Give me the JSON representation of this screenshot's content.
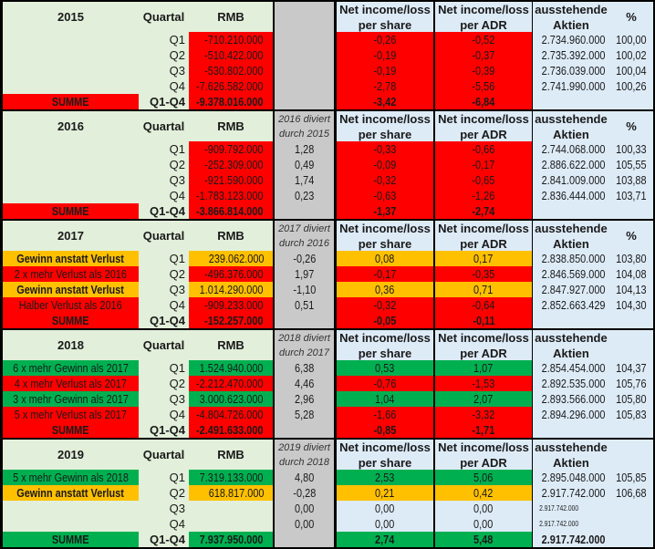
{
  "headers": {
    "quartal": "Quartal",
    "rmb": "RMB",
    "eps": "Net income/loss\nper share",
    "adr": "Net income/loss\nper ADR",
    "shares": "ausstehende\nAktien",
    "pct": "%"
  },
  "colors": {
    "red": "#ff0000",
    "orange": "#ffc000",
    "green": "#00b050",
    "light_green": "#e2efda",
    "light_blue": "#ddebf7",
    "gray": "#c9c9c9"
  },
  "years": [
    {
      "year": "2015",
      "divided": "",
      "show_pct": true,
      "rows": [
        {
          "label": "",
          "lt": "none",
          "q": "Q1",
          "rmb": "-710.210.000",
          "vt": "red",
          "ratio": "",
          "eps": "-0,26",
          "adr": "-0,52",
          "shares": "2.734.960.000",
          "pct": "100,00"
        },
        {
          "label": "",
          "lt": "none",
          "q": "Q2",
          "rmb": "-510.422.000",
          "vt": "red",
          "ratio": "",
          "eps": "-0,19",
          "adr": "-0,37",
          "shares": "2.735.392.000",
          "pct": "100,02"
        },
        {
          "label": "",
          "lt": "none",
          "q": "Q3",
          "rmb": "-530.802.000",
          "vt": "red",
          "ratio": "",
          "eps": "-0,19",
          "adr": "-0,39",
          "shares": "2.736.039.000",
          "pct": "100,04"
        },
        {
          "label": "",
          "lt": "none",
          "q": "Q4",
          "rmb": "-7.626.582.000",
          "vt": "red",
          "ratio": "",
          "eps": "-2,78",
          "adr": "-5,56",
          "shares": "2.741.990.000",
          "pct": "100,26"
        },
        {
          "label": "SUMME",
          "lt": "red",
          "q": "Q1-Q4",
          "rmb": "-9.378.016.000",
          "vt": "red",
          "ratio": "",
          "eps": "-3,42",
          "adr": "-6,84",
          "shares": "",
          "pct": "",
          "sum": true
        }
      ]
    },
    {
      "year": "2016",
      "divided": "2016 diviert\ndurch 2015",
      "show_pct": true,
      "rows": [
        {
          "label": "",
          "lt": "none",
          "q": "Q1",
          "rmb": "-909.792.000",
          "vt": "red",
          "ratio": "1,28",
          "eps": "-0,33",
          "adr": "-0,66",
          "shares": "2.744.068.000",
          "pct": "100,33"
        },
        {
          "label": "",
          "lt": "none",
          "q": "Q2",
          "rmb": "-252.309.000",
          "vt": "red",
          "ratio": "0,49",
          "eps": "-0,09",
          "adr": "-0,17",
          "shares": "2.886.622.000",
          "pct": "105,55"
        },
        {
          "label": "",
          "lt": "none",
          "q": "Q3",
          "rmb": "-921.590.000",
          "vt": "red",
          "ratio": "1,74",
          "eps": "-0,32",
          "adr": "-0,65",
          "shares": "2.841.009.000",
          "pct": "103,88"
        },
        {
          "label": "",
          "lt": "none",
          "q": "Q4",
          "rmb": "-1.783.123.000",
          "vt": "red",
          "ratio": "0,23",
          "eps": "-0,63",
          "adr": "-1,26",
          "shares": "2.836.444.000",
          "pct": "103,71"
        },
        {
          "label": "SUMME",
          "lt": "red",
          "q": "Q1-Q4",
          "rmb": "-3.866.814.000",
          "vt": "red",
          "ratio": "",
          "eps": "-1,37",
          "adr": "-2,74",
          "shares": "",
          "pct": "",
          "sum": true
        }
      ]
    },
    {
      "year": "2017",
      "divided": "2017 diviert\ndurch 2016",
      "show_pct": true,
      "rows": [
        {
          "label": "Gewinn anstatt Verlust",
          "lt": "orange",
          "q": "Q1",
          "rmb": "239.062.000",
          "vt": "orange",
          "ratio": "-0,26",
          "eps": "0,08",
          "adr": "0,17",
          "shares": "2.838.850.000",
          "pct": "103,80"
        },
        {
          "label": "2 x mehr Verlust als 2016",
          "lt": "red",
          "q": "Q2",
          "rmb": "-496.376.000",
          "vt": "red",
          "ratio": "1,97",
          "eps": "-0,17",
          "adr": "-0,35",
          "shares": "2.846.569.000",
          "pct": "104,08"
        },
        {
          "label": "Gewinn anstatt Verlust",
          "lt": "orange",
          "q": "Q3",
          "rmb": "1.014.290.000",
          "vt": "orange",
          "ratio": "-1,10",
          "eps": "0,36",
          "adr": "0,71",
          "shares": "2.847.927.000",
          "pct": "104,13"
        },
        {
          "label": "Halber Verlust als 2016",
          "lt": "red",
          "q": "Q4",
          "rmb": "-909.233.000",
          "vt": "red",
          "ratio": "0,51",
          "eps": "-0,32",
          "adr": "-0,64",
          "shares": "2.852.663.429",
          "pct": "104,30"
        },
        {
          "label": "SUMME",
          "lt": "red",
          "q": "Q1-Q4",
          "rmb": "-152.257.000",
          "vt": "red",
          "ratio": "",
          "eps": "-0,05",
          "adr": "-0,11",
          "shares": "",
          "pct": "",
          "sum": true
        }
      ]
    },
    {
      "year": "2018",
      "divided": "2018 diviert\ndurch 2017",
      "show_pct": false,
      "rows": [
        {
          "label": "6 x mehr Gewinn als 2017",
          "lt": "green",
          "q": "Q1",
          "rmb": "1.524.940.000",
          "vt": "green",
          "ratio": "6,38",
          "eps": "0,53",
          "adr": "1,07",
          "shares": "2.854.454.000",
          "pct": "104,37"
        },
        {
          "label": "4 x mehr Verlust als 2017",
          "lt": "red",
          "q": "Q2",
          "rmb": "-2.212.470.000",
          "vt": "red",
          "ratio": "4,46",
          "eps": "-0,76",
          "adr": "-1,53",
          "shares": "2.892.535.000",
          "pct": "105,76"
        },
        {
          "label": "3 x mehr Gewinn als 2017",
          "lt": "green",
          "q": "Q3",
          "rmb": "3.000.623.000",
          "vt": "green",
          "ratio": "2,96",
          "eps": "1,04",
          "adr": "2,07",
          "shares": "2.893.566.000",
          "pct": "105,80"
        },
        {
          "label": "5 x mehr Verlust als 2017",
          "lt": "red",
          "q": "Q4",
          "rmb": "-4.804.726.000",
          "vt": "red",
          "ratio": "5,28",
          "eps": "-1,66",
          "adr": "-3,32",
          "shares": "2.894.296.000",
          "pct": "105,83"
        },
        {
          "label": "SUMME",
          "lt": "red",
          "q": "Q1-Q4",
          "rmb": "-2.491.633.000",
          "vt": "red",
          "ratio": "",
          "eps": "-0,85",
          "adr": "-1,71",
          "shares": "",
          "pct": "",
          "sum": true
        }
      ]
    },
    {
      "year": "2019",
      "divided": "2019 diviert\ndurch 2018",
      "show_pct": false,
      "rows": [
        {
          "label": "5 x mehr Gewinn als 2018",
          "lt": "green",
          "q": "Q1",
          "rmb": "7.319.133.000",
          "vt": "green",
          "ratio": "4,80",
          "eps": "2,53",
          "adr": "5,06",
          "shares": "2.895.048.000",
          "pct": "105,85"
        },
        {
          "label": "Gewinn anstatt Verlust",
          "lt": "orange",
          "q": "Q2",
          "rmb": "618.817.000",
          "vt": "orange",
          "ratio": "-0,28",
          "eps": "0,21",
          "adr": "0,42",
          "shares": "2.917.742.000",
          "pct": "106,68"
        },
        {
          "label": "",
          "lt": "none",
          "q": "Q3",
          "rmb": "",
          "vt": "none",
          "ratio": "0,00",
          "eps": "0,00",
          "adr": "0,00",
          "shares": "2.917.742.000",
          "pct": "",
          "small": true
        },
        {
          "label": "",
          "lt": "none",
          "q": "Q4",
          "rmb": "",
          "vt": "none",
          "ratio": "0,00",
          "eps": "0,00",
          "adr": "0,00",
          "shares": "2.917.742.000",
          "pct": "",
          "small": true
        },
        {
          "label": "SUMME",
          "lt": "green",
          "q": "Q1-Q4",
          "rmb": "7.937.950.000",
          "vt": "green",
          "ratio": "",
          "eps": "2,74",
          "adr": "5,48",
          "shares": "2.917.742.000",
          "pct": "",
          "sum": true
        }
      ]
    }
  ]
}
